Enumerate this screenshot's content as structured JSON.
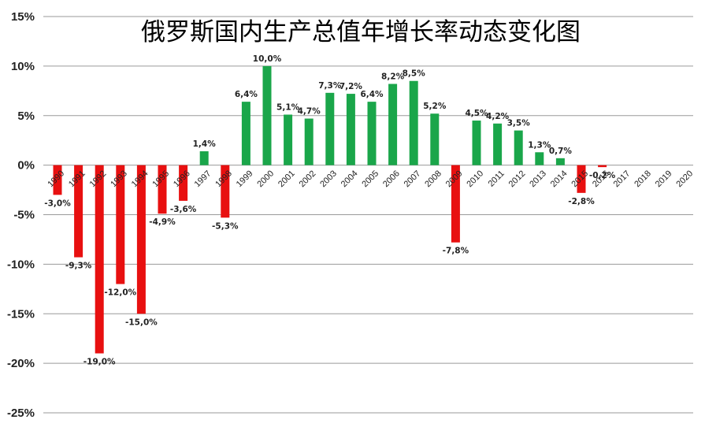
{
  "chart_data": {
    "type": "bar",
    "title": "俄罗斯国内生产总值年增长率动态变化图",
    "xlabel": "",
    "ylabel": "",
    "ylim": [
      -25,
      15
    ],
    "yticks": [
      15,
      10,
      5,
      0,
      -5,
      -10,
      -15,
      -20,
      -25
    ],
    "ytick_labels": [
      "15%",
      "10%",
      "5%",
      "0%",
      "-5%",
      "-10%",
      "-15%",
      "-20%",
      "-25%"
    ],
    "grid": true,
    "legend": "none",
    "colors": {
      "positive": "#1aa64a",
      "negative": "#e81010"
    },
    "categories": [
      "1990",
      "1991",
      "1992",
      "1993",
      "1994",
      "1995",
      "1996",
      "1997",
      "1998",
      "1999",
      "2000",
      "2001",
      "2002",
      "2003",
      "2004",
      "2005",
      "2006",
      "2007",
      "2008",
      "2009",
      "2010",
      "2011",
      "2012",
      "2013",
      "2014",
      "2015",
      "2016",
      "2017",
      "2018",
      "2019",
      "2020"
    ],
    "values": [
      -3.0,
      -9.3,
      -19.0,
      -12.0,
      -15.0,
      -4.9,
      -3.6,
      1.4,
      -5.3,
      6.4,
      10.0,
      5.1,
      4.7,
      7.3,
      7.2,
      6.4,
      8.2,
      8.5,
      5.2,
      -7.8,
      4.5,
      4.2,
      3.5,
      1.3,
      0.7,
      -2.8,
      -0.2,
      null,
      null,
      null,
      null
    ],
    "data_labels": [
      "-3,0%",
      "-9,3%",
      "-19,0%",
      "-12,0%",
      "-15,0%",
      "-4,9%",
      "-3,6%",
      "1,4%",
      "-5,3%",
      "6,4%",
      "10,0%",
      "5,1%",
      "4,7%",
      "7,3%",
      "7,2%",
      "6,4%",
      "8,2%",
      "8,5%",
      "5,2%",
      "-7,8%",
      "4,5%",
      "4,2%",
      "3,5%",
      "1,3%",
      "0,7%",
      "-2,8%",
      "-0,2%",
      "",
      "",
      "",
      ""
    ]
  }
}
